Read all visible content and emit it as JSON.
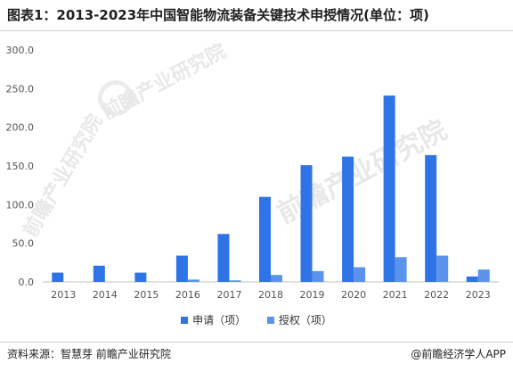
{
  "title": "图表1：2013-2023年中国智能物流装备关键技术申授情况(单位：项)",
  "source": "资料来源：智慧芽 前瞻产业研究院",
  "brand": "@前瞻经济学人APP",
  "watermark": "前瞻产业研究院",
  "colors": {
    "series1": "#2e74e6",
    "series2": "#5b93ec",
    "axis": "#bfbfbf"
  },
  "chart_data": {
    "type": "bar",
    "categories": [
      "2013",
      "2014",
      "2015",
      "2016",
      "2017",
      "2018",
      "2019",
      "2020",
      "2021",
      "2022",
      "2023"
    ],
    "series": [
      {
        "name": "申请（项）",
        "values": [
          12,
          21,
          12,
          34,
          62,
          110,
          151,
          162,
          241,
          164,
          7
        ]
      },
      {
        "name": "授权（项）",
        "values": [
          0,
          0,
          0,
          3,
          2,
          9,
          14,
          19,
          32,
          34,
          16
        ]
      }
    ],
    "yticks": [
      "0.0",
      "50.0",
      "100.0",
      "150.0",
      "200.0",
      "250.0",
      "300.0"
    ],
    "ylim": [
      0,
      300
    ],
    "legend": "bottom",
    "grid": false
  }
}
